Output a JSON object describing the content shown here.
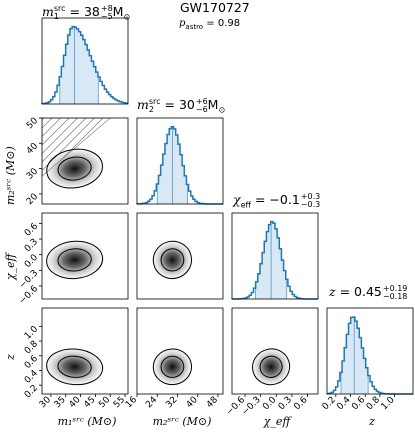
{
  "header": {
    "event": "GW170727",
    "p_astro_label": "p",
    "p_astro_sub": "astro",
    "p_astro_value": " = 0.98"
  },
  "colors": {
    "hist": "#1f77b4",
    "band": "#cfe2f3",
    "contour": "#000000",
    "hatch": "#555555"
  },
  "titles": {
    "m1": {
      "sym": "m",
      "sub": "1",
      "sup": "src",
      "eq": " = 38",
      "plus": "+8",
      "minus": "−5",
      "unit": "M",
      "unit_sub": "⊙"
    },
    "m2": {
      "sym": "m",
      "sub": "2",
      "sup": "src",
      "eq": " = 30",
      "plus": "+6",
      "minus": "−6",
      "unit": "M",
      "unit_sub": "⊙"
    },
    "chi": {
      "sym": "χ",
      "sub": "eff",
      "eq": " = −0.1",
      "plus": "+0.3",
      "minus": "−0.3"
    },
    "z": {
      "sym": "z",
      "eq": " = 0.45",
      "plus": "+0.19",
      "minus": "−0.18"
    }
  },
  "axis_labels": {
    "x": [
      "m₁ˢʳᶜ (M⊙)",
      "m₂ˢʳᶜ (M⊙)",
      "χ_eff",
      "z"
    ],
    "y": [
      "m₂ˢʳᶜ (M⊙)",
      "χ_eff",
      "z"
    ]
  },
  "chart_data": {
    "type": "corner",
    "parameters": [
      "m1_src",
      "m2_src",
      "chi_eff",
      "z"
    ],
    "ranges": {
      "m1_src": [
        27,
        56
      ],
      "m2_src": [
        16,
        50
      ],
      "chi_eff": [
        -0.85,
        0.8
      ],
      "z": [
        0.08,
        1.25
      ]
    },
    "ticks": {
      "m1_src": [
        30,
        35,
        40,
        45,
        50,
        55
      ],
      "m2_src": [
        16,
        24,
        32,
        40,
        48
      ],
      "m2_src_left": [
        20,
        30,
        40,
        50
      ],
      "chi_eff": [
        -0.6,
        -0.3,
        0.0,
        0.3,
        0.6
      ],
      "z": [
        0.2,
        0.4,
        0.6,
        0.8,
        1.0
      ]
    },
    "tick_labels": {
      "m1_src": [
        "30",
        "35",
        "40",
        "45",
        "50",
        "55"
      ],
      "m2_src": [
        "16",
        "24",
        "32",
        "40",
        "48"
      ],
      "m2_src_left": [
        "20",
        "30",
        "40",
        "50"
      ],
      "chi_eff": [
        "−0.6",
        "−0.3",
        "0.0",
        "0.3",
        "0.6"
      ],
      "z": [
        "0.2",
        "0.4",
        "0.6",
        "0.8",
        "1.0"
      ]
    },
    "medians": {
      "m1_src": 38,
      "m2_src": 30,
      "chi_eff": -0.1,
      "z": 0.45
    },
    "credible_90": {
      "m1_src": [
        33,
        46
      ],
      "m2_src": [
        24,
        36
      ],
      "chi_eff": [
        -0.4,
        0.2
      ],
      "z": [
        0.27,
        0.64
      ]
    },
    "distributions": {
      "m1_src": {
        "peak": 37.5,
        "left_width": 3.0,
        "right_width": 6.0
      },
      "m2_src": {
        "peak": 30,
        "left_width": 3.6,
        "right_width": 3.6
      },
      "chi_eff": {
        "peak": -0.08,
        "left_width": 0.17,
        "right_width": 0.17
      },
      "z": {
        "peak": 0.43,
        "left_width": 0.1,
        "right_width": 0.13
      }
    },
    "hatched_region": "m2_src > m1_src"
  }
}
